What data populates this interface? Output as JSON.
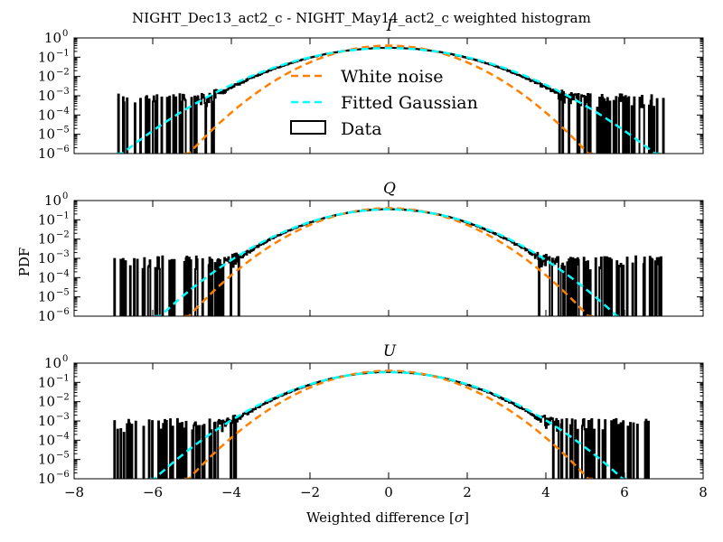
{
  "figure": {
    "title": "NIGHT_Dec13_act2_c - NIGHT_May14_act2_c weighted histogram",
    "xlabel_text": "Weighted difference [",
    "xlabel_sigma": "σ",
    "xlabel_close": "]",
    "ylabel": "PDF"
  },
  "chart_data": [
    {
      "type": "line",
      "title": "I",
      "xlim": [
        -8,
        8
      ],
      "ylim_log10": [
        -6,
        0
      ],
      "yscale": "log",
      "xticks": [
        -8,
        -6,
        -4,
        -2,
        0,
        2,
        4,
        6,
        8
      ],
      "yticks_exponents": [
        0,
        -1,
        -2,
        -3,
        -4,
        -5,
        -6
      ],
      "legend": {
        "placement": "center",
        "entries": [
          "White noise",
          "Fitted Gaussian",
          "Data"
        ]
      },
      "series": [
        {
          "name": "White noise",
          "model": "gaussian",
          "sigma": 1.0,
          "color": "#ff8000",
          "style": "dashed"
        },
        {
          "name": "Fitted Gaussian",
          "model": "gaussian",
          "sigma": 1.35,
          "color": "#00ffff",
          "style": "dashed"
        },
        {
          "name": "Data",
          "model": "histogram",
          "sigma": 1.3,
          "tail_extent": [
            -7.0,
            7.0
          ],
          "tail_level": 0.0004,
          "color": "#000000",
          "style": "step"
        }
      ]
    },
    {
      "type": "line",
      "title": "Q",
      "xlim": [
        -8,
        8
      ],
      "ylim_log10": [
        -6,
        0
      ],
      "yscale": "log",
      "xticks": [
        -8,
        -6,
        -4,
        -2,
        0,
        2,
        4,
        6,
        8
      ],
      "yticks_exponents": [
        0,
        -1,
        -2,
        -3,
        -4,
        -5,
        -6
      ],
      "series": [
        {
          "name": "White noise",
          "model": "gaussian",
          "sigma": 1.0,
          "color": "#ff8000",
          "style": "dashed"
        },
        {
          "name": "Fitted Gaussian",
          "model": "gaussian",
          "sigma": 1.15,
          "color": "#00ffff",
          "style": "dashed"
        },
        {
          "name": "Data",
          "model": "histogram",
          "sigma": 1.12,
          "tail_extent": [
            -7.0,
            7.0
          ],
          "tail_level": 0.0004,
          "color": "#000000",
          "style": "step"
        }
      ]
    },
    {
      "type": "line",
      "title": "U",
      "xlim": [
        -8,
        8
      ],
      "ylim_log10": [
        -6,
        0
      ],
      "yscale": "log",
      "xticks": [
        -8,
        -6,
        -4,
        -2,
        0,
        2,
        4,
        6,
        8
      ],
      "yticks_exponents": [
        0,
        -1,
        -2,
        -3,
        -4,
        -5,
        -6
      ],
      "series": [
        {
          "name": "White noise",
          "model": "gaussian",
          "sigma": 1.0,
          "color": "#ff8000",
          "style": "dashed"
        },
        {
          "name": "Fitted Gaussian",
          "model": "gaussian",
          "sigma": 1.18,
          "color": "#00ffff",
          "style": "dashed"
        },
        {
          "name": "Data",
          "model": "histogram",
          "sigma": 1.15,
          "tail_extent": [
            -7.0,
            7.0
          ],
          "tail_level": 0.0004,
          "color": "#000000",
          "style": "step"
        }
      ]
    }
  ]
}
